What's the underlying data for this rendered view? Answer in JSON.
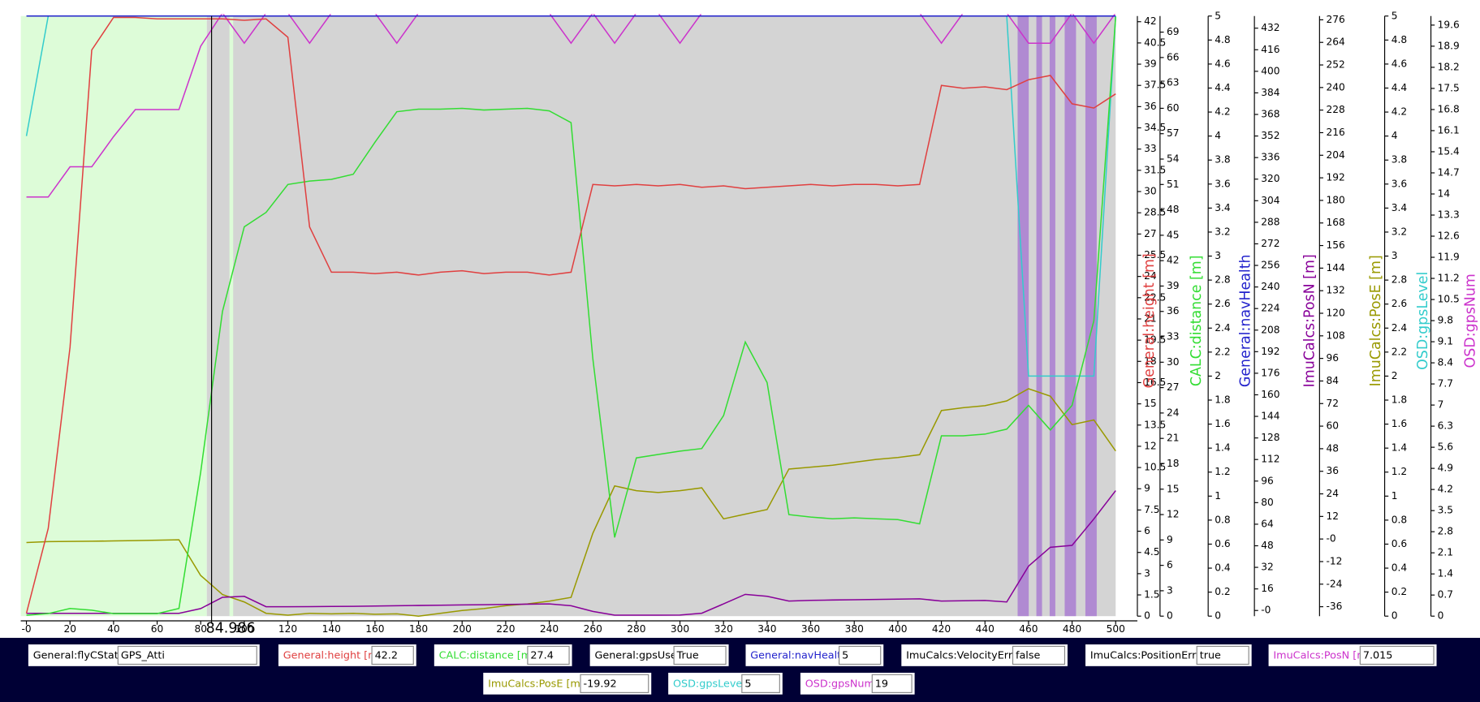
{
  "chart_data": {
    "type": "line",
    "x": [
      0,
      10,
      20,
      30,
      40,
      50,
      60,
      70,
      80,
      90,
      100,
      110,
      120,
      130,
      140,
      150,
      160,
      170,
      180,
      190,
      200,
      210,
      220,
      230,
      240,
      250,
      260,
      270,
      280,
      290,
      300,
      310,
      320,
      330,
      340,
      350,
      360,
      370,
      380,
      390,
      400,
      410,
      420,
      430,
      440,
      450,
      460,
      470,
      480,
      490,
      500
    ],
    "xlim": [
      -2.6,
      500
    ],
    "xticks": [
      {
        "value": 0,
        "label": "-0"
      },
      20,
      40,
      60,
      80,
      100,
      120,
      140,
      160,
      180,
      200,
      220,
      240,
      260,
      280,
      300,
      320,
      340,
      360,
      380,
      400,
      420,
      440,
      460,
      480,
      500
    ],
    "regions": [
      {
        "x": [
          -2.6,
          82.8
        ],
        "color": "#ddfcd8"
      },
      {
        "x": [
          82.8,
          500
        ],
        "color": "#d4d4d4"
      },
      {
        "x": [
          93.2,
          94.9
        ],
        "color": "#ddfcd8"
      },
      {
        "x": [
          455,
          460.1
        ],
        "color": "#b08ad2"
      },
      {
        "x": [
          463.6,
          466.2
        ],
        "color": "#b08ad2"
      },
      {
        "x": [
          469.7,
          472.3
        ],
        "color": "#b08ad2"
      },
      {
        "x": [
          476.6,
          481.8
        ],
        "color": "#b08ad2"
      },
      {
        "x": [
          486.1,
          491.3
        ],
        "color": "#b08ad2"
      }
    ],
    "cursor": {
      "x": 84.986
    },
    "series": [
      {
        "name": "General:height [m]",
        "color": "#e04040",
        "ylim": [
          0,
          42.4
        ],
        "yticks": [
          0,
          1.5,
          3,
          4.5,
          6,
          7.5,
          9,
          10.5,
          12,
          13.5,
          15,
          16.5,
          18,
          19.5,
          21,
          22.5,
          24,
          25.5,
          27,
          28.5,
          30,
          31.5,
          33,
          34.5,
          36,
          37.5,
          39,
          40.5,
          42
        ],
        "values": [
          0.2,
          6.2,
          19,
          40,
          42.3,
          42.3,
          42.2,
          42.2,
          42.2,
          42.2,
          42.1,
          42.2,
          40.9,
          27.5,
          24.3,
          24.3,
          24.2,
          24.3,
          24.1,
          24.3,
          24.4,
          24.2,
          24.3,
          24.3,
          24.1,
          24.3,
          30.5,
          30.4,
          30.5,
          30.4,
          30.5,
          30.3,
          30.4,
          30.2,
          30.3,
          30.4,
          30.5,
          30.4,
          30.5,
          30.5,
          30.4,
          30.5,
          37.5,
          37.3,
          37.4,
          37.2,
          37.9,
          38.2,
          36.2,
          35.9,
          36.9
        ]
      },
      {
        "name": "CALC:distance [m]",
        "color": "#33dd33",
        "ylim": [
          0,
          70.9
        ],
        "yticks": [
          0,
          3,
          6,
          9,
          12,
          15,
          18,
          21,
          24,
          27,
          30,
          33,
          36,
          39,
          42,
          45,
          48,
          51,
          54,
          57,
          60,
          63,
          66,
          69
        ],
        "values": [
          0.1,
          0.3,
          0.9,
          0.7,
          0.3,
          0.3,
          0.3,
          0.9,
          17,
          36,
          46,
          47.7,
          51,
          51.4,
          51.6,
          52.2,
          56,
          59.6,
          59.9,
          59.9,
          60,
          59.8,
          59.9,
          60,
          59.7,
          58.3,
          30.4,
          9.3,
          18.7,
          19.1,
          19.5,
          19.8,
          23.7,
          32.4,
          27.6,
          12,
          11.7,
          11.5,
          11.6,
          11.5,
          11.4,
          10.9,
          21.3,
          21.3,
          21.5,
          22.1,
          24.9,
          22,
          24.9,
          34.9,
          70.8
        ]
      },
      {
        "name": "General:navHealth",
        "color": "#2222cc",
        "ylim": [
          0,
          5
        ],
        "yticks": [
          0,
          0.2,
          0.4,
          0.6,
          0.8,
          1,
          1.2,
          1.4,
          1.6,
          1.8,
          2,
          2.2,
          2.4,
          2.6,
          2.8,
          3,
          3.2,
          3.4,
          3.6,
          3.8,
          4,
          4.2,
          4.4,
          4.6,
          4.8,
          5
        ],
        "values": [
          5,
          5,
          5,
          5,
          5,
          5,
          5,
          5,
          5,
          5,
          5,
          5,
          5,
          5,
          5,
          5,
          5,
          5,
          5,
          5,
          5,
          5,
          5,
          5,
          5,
          5,
          5,
          5,
          5,
          5,
          5,
          5,
          5,
          5,
          5,
          5,
          5,
          5,
          5,
          5,
          5,
          5,
          5,
          5,
          5,
          5,
          5,
          5,
          5,
          5,
          5
        ]
      },
      {
        "name": "ImuCalcs:PosN [m]",
        "color": "#880099",
        "ylim": [
          -4.2,
          441
        ],
        "yticks": [
          {
            "value": 0,
            "label": "-0"
          },
          16,
          32,
          48,
          64,
          80,
          96,
          112,
          128,
          144,
          160,
          176,
          192,
          208,
          224,
          240,
          256,
          272,
          288,
          304,
          320,
          336,
          352,
          368,
          384,
          400,
          416,
          432
        ],
        "values": [
          -2.1,
          -2.1,
          -2.1,
          -2.1,
          -2.1,
          -2.1,
          -2.1,
          -2.1,
          1.4,
          9.8,
          10.5,
          2.8,
          2.8,
          2.9,
          3,
          3.1,
          3.3,
          3.5,
          3.7,
          3.9,
          4.1,
          4.3,
          4.5,
          4.7,
          4.9,
          3.5,
          -0.7,
          -3.5,
          -3.5,
          -3.5,
          -3.4,
          -2,
          4.9,
          12,
          10.5,
          7,
          7.5,
          7.8,
          8,
          8.2,
          8.4,
          8.6,
          7,
          7.2,
          7.4,
          6.3,
          32.9,
          46.9,
          48.3,
          67.9,
          88.9
        ]
      },
      {
        "name": "ImuCalcs:PosE [m]",
        "color": "#999900",
        "ylim": [
          -41,
          278
        ],
        "yticks": [
          -36,
          -24,
          -12,
          {
            "value": 0,
            "label": "-0"
          },
          12,
          24,
          36,
          48,
          60,
          72,
          84,
          96,
          108,
          120,
          132,
          144,
          156,
          168,
          180,
          192,
          204,
          216,
          228,
          240,
          252,
          264,
          276
        ],
        "values": [
          -1.9,
          -1.4,
          -1.3,
          -1.2,
          -1,
          -0.8,
          -0.6,
          -0.4,
          -19.4,
          -29.5,
          -33.5,
          -39.5,
          -40.5,
          -39.5,
          -39.8,
          -39.5,
          -40,
          -39.8,
          -41,
          -39.5,
          -38,
          -37,
          -35.5,
          -34.5,
          -33,
          -31,
          3.1,
          28.2,
          25.7,
          24.7,
          25.7,
          27.2,
          10.7,
          13.2,
          15.7,
          37.2,
          38.2,
          39.2,
          40.8,
          42.3,
          43.3,
          44.8,
          68.3,
          69.8,
          70.9,
          73.4,
          79.9,
          75.9,
          60.8,
          63.3,
          46.8
        ]
      },
      {
        "name": "OSD:gpsLevel",
        "color": "#33cccc",
        "ylim": [
          0,
          5
        ],
        "yticks": [
          0,
          0.2,
          0.4,
          0.6,
          0.8,
          1,
          1.2,
          1.4,
          1.6,
          1.8,
          2,
          2.2,
          2.4,
          2.6,
          2.8,
          3,
          3.2,
          3.4,
          3.6,
          3.8,
          4,
          4.2,
          4.4,
          4.6,
          4.8,
          5
        ],
        "values": [
          4,
          5,
          5,
          5,
          5,
          5,
          5,
          5,
          5,
          5,
          5,
          5,
          5,
          5,
          5,
          5,
          5,
          5,
          5,
          5,
          5,
          5,
          5,
          5,
          5,
          5,
          5,
          5,
          5,
          5,
          5,
          5,
          5,
          5,
          5,
          5,
          5,
          5,
          5,
          5,
          5,
          5,
          5,
          5,
          5,
          5,
          2,
          2,
          2,
          2,
          5
        ]
      },
      {
        "name": "OSD:gpsNum",
        "color": "#cc33cc",
        "ylim": [
          0,
          19.9
        ],
        "yticks": [
          0,
          0.7,
          1.4,
          2.1,
          2.8,
          3.5,
          4.2,
          4.9,
          5.6,
          6.3,
          7,
          7.7,
          8.4,
          9.1,
          9.8,
          10.5,
          11.2,
          11.9,
          12.6,
          13.3,
          14,
          14.7,
          15.4,
          16.1,
          16.8,
          17.5,
          18.2,
          18.9,
          19.6
        ],
        "values": [
          13.9,
          13.9,
          14.9,
          14.9,
          15.9,
          16.8,
          16.8,
          16.8,
          18.9,
          20,
          19,
          20,
          20,
          19,
          20,
          20,
          20,
          19,
          20,
          20,
          20,
          20,
          20,
          20,
          20,
          19,
          20,
          19,
          20,
          20,
          19,
          20,
          20,
          20,
          20,
          20,
          20,
          20,
          20,
          20,
          20,
          20,
          19,
          20,
          20,
          20,
          19,
          19,
          20,
          19,
          20
        ]
      }
    ]
  },
  "fields": [
    {
      "label": "General:flyCState",
      "value": "GPS_Atti",
      "color": "#000000"
    },
    {
      "label": "General:height [m]",
      "value": "42.2",
      "color": "#e04040"
    },
    {
      "label": "CALC:distance [m]",
      "value": "27.4",
      "color": "#33dd33"
    },
    {
      "label": "General:gpsUsed",
      "value": "True",
      "color": "#000000"
    },
    {
      "label": "General:navHealth",
      "value": "5",
      "color": "#2222cc"
    },
    {
      "label": "ImuCalcs:VelocityError",
      "value": "false",
      "color": "#000000"
    },
    {
      "label": "ImuCalcs:PositionError",
      "value": "true",
      "color": "#000000"
    },
    {
      "label": "ImuCalcs:PosN [m]",
      "value": "7.015",
      "color": "#cc33cc"
    },
    {
      "label": "ImuCalcs:PosE [m]",
      "value": "-19.92",
      "color": "#999900"
    },
    {
      "label": "OSD:gpsLevel",
      "value": "5",
      "color": "#33cccc"
    },
    {
      "label": "OSD:gpsNum",
      "value": "19",
      "color": "#cc33cc"
    }
  ]
}
